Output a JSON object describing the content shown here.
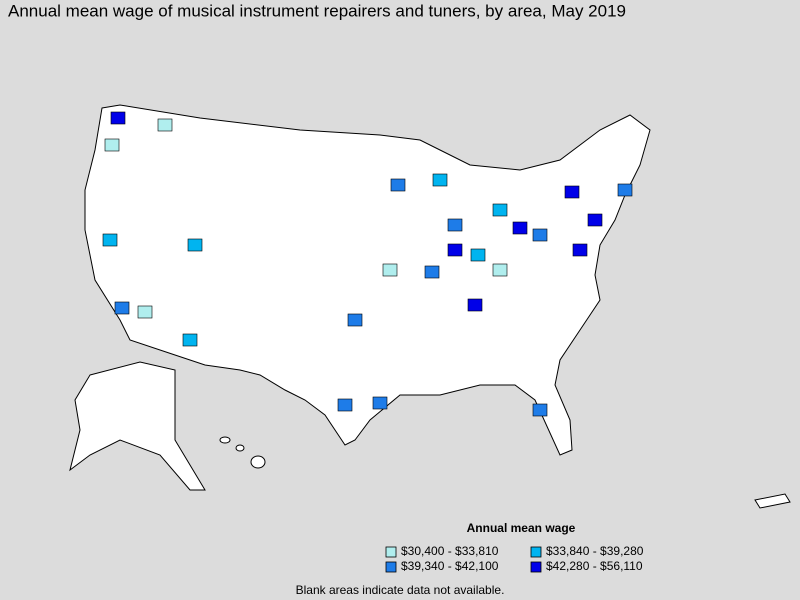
{
  "title": "Annual mean wage of musical instrument repairers and tuners, by area, May 2019",
  "legend": {
    "title": "Annual mean wage",
    "items": [
      {
        "label": "$30,400 - $33,810",
        "color": "#b0eeee"
      },
      {
        "label": "$39,340 - $42,100",
        "color": "#1e7ce8"
      },
      {
        "label": "$33,840 - $39,280",
        "color": "#00b4f0"
      },
      {
        "label": "$42,280 - $56,110",
        "color": "#0000e8"
      }
    ]
  },
  "footnote": "Blank areas indicate data not available."
}
